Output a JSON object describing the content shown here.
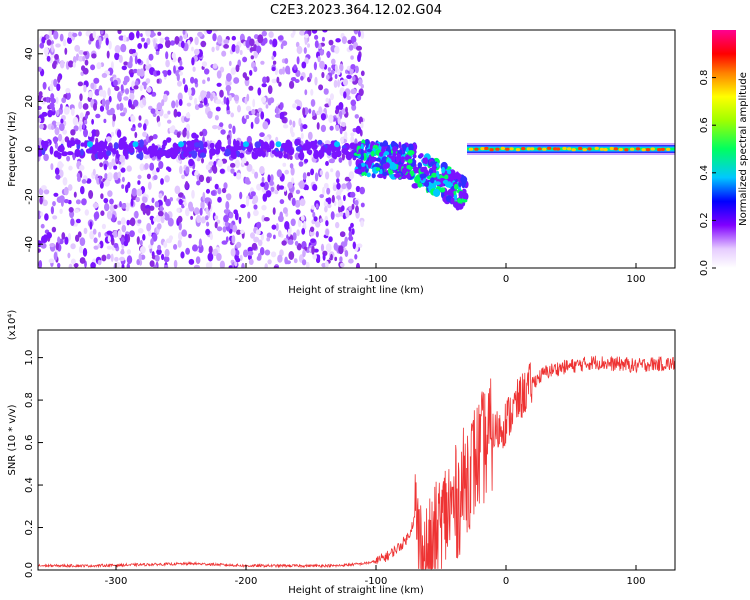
{
  "title": "C2E3.2023.364.12.02.G04",
  "chart_data": [
    {
      "type": "heatmap",
      "xlabel": "Height of straight line (km)",
      "ylabel": "Frequency (Hz)",
      "xlim": [
        -360,
        130
      ],
      "ylim": [
        -50,
        50
      ],
      "x_ticks": [
        -300,
        -200,
        -100,
        0,
        100
      ],
      "y_ticks": [
        -40,
        -20,
        0,
        20,
        40
      ],
      "x_tick_labels": [
        "-300",
        "-200",
        "-100",
        "0",
        "100"
      ],
      "y_tick_labels": [
        "-40",
        "-20",
        "0",
        "20",
        "40"
      ],
      "noise_region": [
        -360,
        -110
      ],
      "carrier_line_frequency": 0,
      "colorbar": {
        "label": "Normalized spectral amplitude",
        "range": [
          0,
          1
        ],
        "ticks": [
          0.0,
          0.2,
          0.4,
          0.6,
          0.8
        ],
        "tick_labels": [
          "0.0",
          "0.2",
          "0.4",
          "0.6",
          "0.8"
        ],
        "colors": [
          "#ffffff",
          "#d9b3ff",
          "#8000ff",
          "#0000ff",
          "#00ffff",
          "#00ff00",
          "#ffff00",
          "#ff8000",
          "#ff0000",
          "#ff00aa"
        ]
      }
    },
    {
      "type": "line",
      "xlabel": "Height of straight line (km)",
      "ylabel": "SNR (10 * v/v)",
      "y_scale_label": "(x10⁴)",
      "xlim": [
        -360,
        130
      ],
      "ylim": [
        0,
        1.13
      ],
      "x_ticks": [
        -300,
        -200,
        -100,
        0,
        100
      ],
      "y_ticks": [
        0.0,
        0.2,
        0.4,
        0.6,
        0.8,
        1.0
      ],
      "x_tick_labels": [
        "-300",
        "-200",
        "-100",
        "0",
        "100"
      ],
      "y_tick_labels": [
        "0.0",
        "0.2",
        "0.4",
        "0.6",
        "0.8",
        "1.0"
      ],
      "color": "#ee3333",
      "series": [
        {
          "name": "SNR",
          "x": [
            -360,
            -320,
            -280,
            -240,
            -200,
            -160,
            -130,
            -110,
            -100,
            -90,
            -80,
            -75,
            -70,
            -65,
            -60,
            -55,
            -50,
            -45,
            -40,
            -35,
            -30,
            -25,
            -20,
            -15,
            -10,
            -5,
            0,
            10,
            20,
            30,
            40,
            50,
            60,
            70,
            80,
            90,
            100,
            110,
            120,
            130
          ],
          "y": [
            0.02,
            0.02,
            0.025,
            0.03,
            0.02,
            0.02,
            0.02,
            0.03,
            0.04,
            0.07,
            0.12,
            0.16,
            0.25,
            0.07,
            0.04,
            0.12,
            0.2,
            0.28,
            0.3,
            0.35,
            0.45,
            0.5,
            0.55,
            0.6,
            0.64,
            0.66,
            0.7,
            0.8,
            0.88,
            0.93,
            0.95,
            0.96,
            0.97,
            0.98,
            0.97,
            0.97,
            0.96,
            0.97,
            0.97,
            0.97
          ]
        }
      ]
    }
  ]
}
